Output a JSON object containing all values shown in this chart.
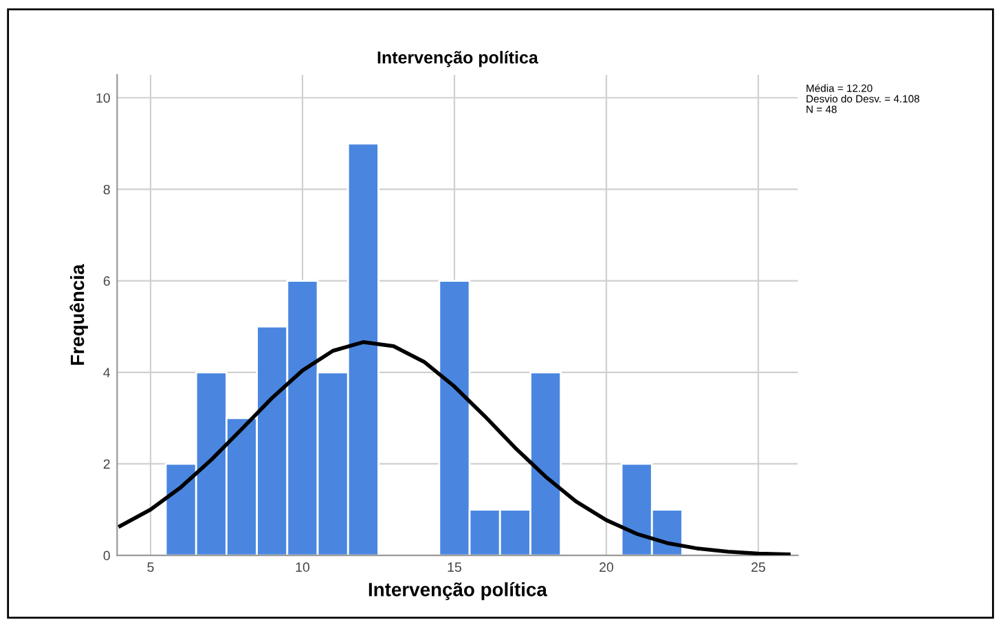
{
  "chart_data": {
    "type": "histogram",
    "title": "Intervenção política",
    "xlabel": "Intervenção política",
    "ylabel": "Frequência",
    "bins": [
      5.5,
      6.5,
      7.5,
      8.5,
      9.5,
      10.5,
      11.5,
      12.5,
      13.5,
      14.5,
      15.5,
      16.5,
      17.5,
      18.5,
      19.5,
      20.5,
      21.5,
      22.5
    ],
    "values": [
      2,
      4,
      3,
      5,
      6,
      4,
      9,
      0,
      0,
      6,
      1,
      1,
      4,
      0,
      0,
      2,
      1
    ],
    "color": "#4a86e0",
    "series": [
      {
        "type": "line",
        "color": "#000000",
        "x": [
          4,
          5,
          6,
          7,
          8,
          9,
          10,
          11,
          12,
          13,
          14,
          15,
          16,
          17,
          18,
          19,
          20,
          21,
          22,
          23,
          24,
          25,
          26
        ],
        "values": [
          0.64,
          1.0,
          1.49,
          2.09,
          2.76,
          3.44,
          4.04,
          4.47,
          4.66,
          4.57,
          4.23,
          3.69,
          3.04,
          2.35,
          1.72,
          1.18,
          0.77,
          0.47,
          0.27,
          0.15,
          0.08,
          0.04,
          0.02
        ]
      }
    ],
    "annotations": [
      "Média = 12.20\nDesvio do Desv. = 4.108\nN = 48"
    ],
    "xlim": [
      3.9,
      26.3
    ],
    "ylim": [
      0,
      10.5
    ],
    "xticks": [
      5,
      10,
      15,
      20,
      25
    ],
    "yticks": [
      0,
      2,
      4,
      6,
      8,
      10
    ],
    "grid": true
  }
}
